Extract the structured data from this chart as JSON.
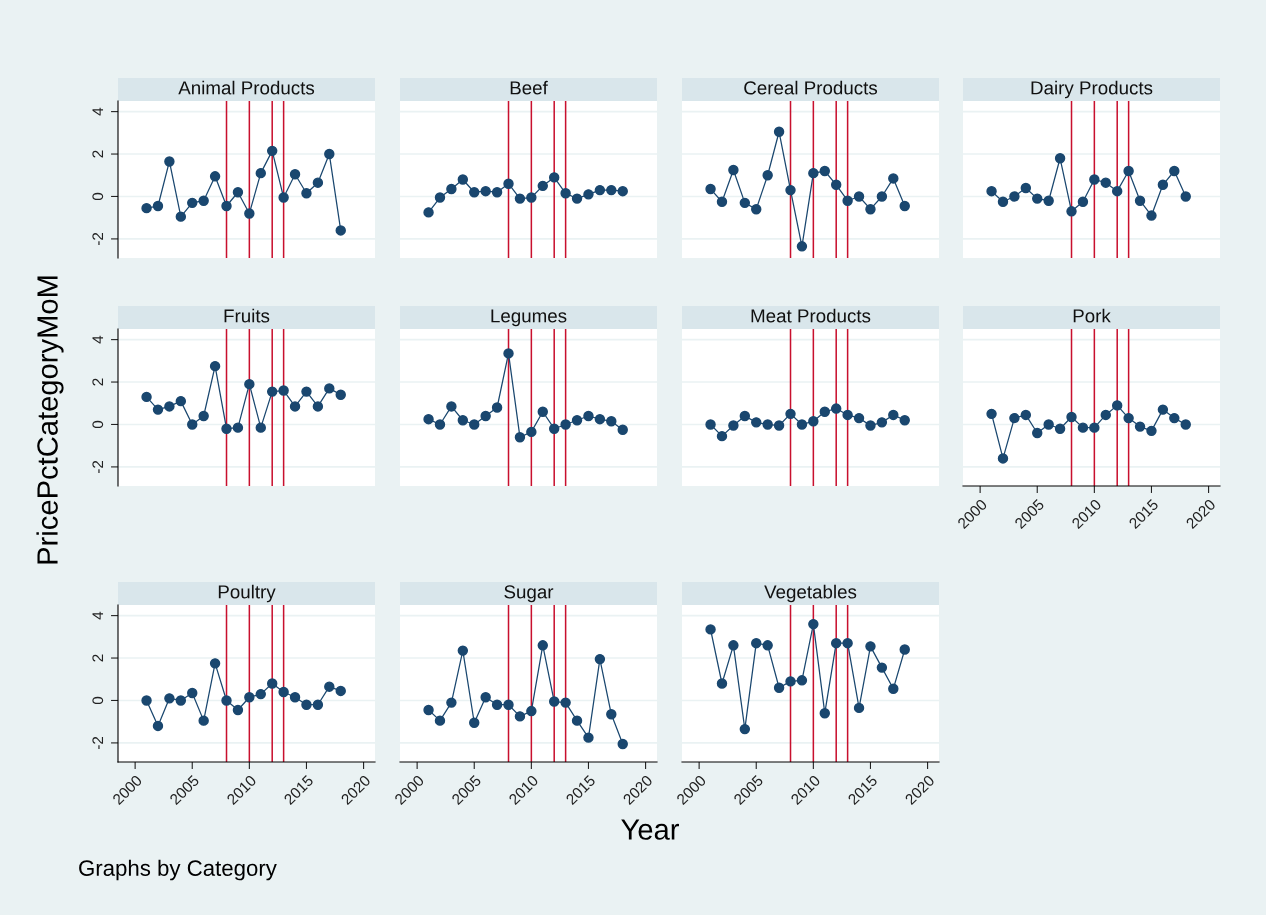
{
  "chart_data": [
    {
      "type": "line",
      "title": "Animal Products",
      "x": [
        2001,
        2002,
        2003,
        2004,
        2005,
        2006,
        2007,
        2008,
        2009,
        2010,
        2011,
        2012,
        2013,
        2014,
        2015,
        2016,
        2017,
        2018
      ],
      "series": [
        {
          "color": "#1a476f",
          "values": [
            -0.55,
            -0.45,
            1.65,
            -0.95,
            -0.3,
            -0.2,
            0.95,
            -0.45,
            0.2,
            -0.8,
            1.1,
            2.15,
            -0.05,
            1.05,
            0.15,
            0.65,
            2.0,
            -1.6
          ]
        }
      ],
      "marker": "circle",
      "xlim": [
        1998.5,
        2021
      ],
      "ylim": [
        -2.9,
        4.5
      ],
      "xticks": [
        2000,
        2005,
        2010,
        2015,
        2020
      ],
      "yticks": [
        -2,
        0,
        2,
        4
      ],
      "tick_labels": "y",
      "grid": "y",
      "ref_lines": [
        {
          "axis": "x",
          "value": 2008,
          "color": "#c8102e"
        },
        {
          "axis": "x",
          "value": 2010,
          "color": "#c8102e"
        },
        {
          "axis": "x",
          "value": 2012,
          "color": "#c8102e"
        },
        {
          "axis": "x",
          "value": 2013,
          "color": "#c8102e"
        }
      ]
    },
    {
      "type": "line",
      "title": "Beef",
      "x": [
        2001,
        2002,
        2003,
        2004,
        2005,
        2006,
        2007,
        2008,
        2009,
        2010,
        2011,
        2012,
        2013,
        2014,
        2015,
        2016,
        2017,
        2018
      ],
      "series": [
        {
          "color": "#1a476f",
          "values": [
            -0.75,
            -0.05,
            0.35,
            0.8,
            0.2,
            0.25,
            0.2,
            0.6,
            -0.1,
            -0.05,
            0.5,
            0.9,
            0.15,
            -0.1,
            0.1,
            0.3,
            0.3,
            0.25
          ]
        }
      ],
      "marker": "circle",
      "xlim": [
        1998.5,
        2021
      ],
      "ylim": [
        -2.9,
        4.5
      ],
      "xticks": [
        2000,
        2005,
        2010,
        2015,
        2020
      ],
      "yticks": [
        -2,
        0,
        2,
        4
      ],
      "tick_labels": false,
      "grid": "y",
      "ref_lines": [
        {
          "axis": "x",
          "value": 2008,
          "color": "#c8102e"
        },
        {
          "axis": "x",
          "value": 2010,
          "color": "#c8102e"
        },
        {
          "axis": "x",
          "value": 2012,
          "color": "#c8102e"
        },
        {
          "axis": "x",
          "value": 2013,
          "color": "#c8102e"
        }
      ]
    },
    {
      "type": "line",
      "title": "Cereal Products",
      "x": [
        2001,
        2002,
        2003,
        2004,
        2005,
        2006,
        2007,
        2008,
        2009,
        2010,
        2011,
        2012,
        2013,
        2014,
        2015,
        2016,
        2017,
        2018
      ],
      "series": [
        {
          "color": "#1a476f",
          "values": [
            0.35,
            -0.25,
            1.25,
            -0.3,
            -0.6,
            1.0,
            3.05,
            0.3,
            -2.35,
            1.1,
            1.2,
            0.55,
            -0.2,
            0.0,
            -0.6,
            0.0,
            0.85,
            -0.45
          ]
        }
      ],
      "marker": "circle",
      "xlim": [
        1998.5,
        2021
      ],
      "ylim": [
        -2.9,
        4.5
      ],
      "xticks": [
        2000,
        2005,
        2010,
        2015,
        2020
      ],
      "yticks": [
        -2,
        0,
        2,
        4
      ],
      "tick_labels": false,
      "grid": "y",
      "ref_lines": [
        {
          "axis": "x",
          "value": 2008,
          "color": "#c8102e"
        },
        {
          "axis": "x",
          "value": 2010,
          "color": "#c8102e"
        },
        {
          "axis": "x",
          "value": 2012,
          "color": "#c8102e"
        },
        {
          "axis": "x",
          "value": 2013,
          "color": "#c8102e"
        }
      ]
    },
    {
      "type": "line",
      "title": "Dairy Products",
      "x": [
        2001,
        2002,
        2003,
        2004,
        2005,
        2006,
        2007,
        2008,
        2009,
        2010,
        2011,
        2012,
        2013,
        2014,
        2015,
        2016,
        2017,
        2018
      ],
      "series": [
        {
          "color": "#1a476f",
          "values": [
            0.25,
            -0.25,
            0.0,
            0.4,
            -0.1,
            -0.2,
            1.8,
            -0.7,
            -0.25,
            0.8,
            0.65,
            0.25,
            1.2,
            -0.2,
            -0.9,
            0.55,
            1.2,
            0.0
          ]
        }
      ],
      "marker": "circle",
      "xlim": [
        1998.5,
        2021
      ],
      "ylim": [
        -2.9,
        4.5
      ],
      "xticks": [
        2000,
        2005,
        2010,
        2015,
        2020
      ],
      "yticks": [
        -2,
        0,
        2,
        4
      ],
      "tick_labels": false,
      "grid": "y",
      "ref_lines": [
        {
          "axis": "x",
          "value": 2008,
          "color": "#c8102e"
        },
        {
          "axis": "x",
          "value": 2010,
          "color": "#c8102e"
        },
        {
          "axis": "x",
          "value": 2012,
          "color": "#c8102e"
        },
        {
          "axis": "x",
          "value": 2013,
          "color": "#c8102e"
        }
      ]
    },
    {
      "type": "line",
      "title": "Fruits",
      "ylabel": "PricePctCategoryMoM",
      "x": [
        2001,
        2002,
        2003,
        2004,
        2005,
        2006,
        2007,
        2008,
        2009,
        2010,
        2011,
        2012,
        2013,
        2014,
        2015,
        2016,
        2017,
        2018
      ],
      "series": [
        {
          "color": "#1a476f",
          "values": [
            1.3,
            0.7,
            0.85,
            1.1,
            0.0,
            0.4,
            2.75,
            -0.2,
            -0.15,
            1.9,
            -0.15,
            1.55,
            1.6,
            0.85,
            1.55,
            0.85,
            1.7,
            1.4
          ]
        }
      ],
      "marker": "circle",
      "xlim": [
        1998.5,
        2021
      ],
      "ylim": [
        -2.9,
        4.5
      ],
      "xticks": [
        2000,
        2005,
        2010,
        2015,
        2020
      ],
      "yticks": [
        -2,
        0,
        2,
        4
      ],
      "tick_labels": "y",
      "grid": "y",
      "ref_lines": [
        {
          "axis": "x",
          "value": 2008,
          "color": "#c8102e"
        },
        {
          "axis": "x",
          "value": 2010,
          "color": "#c8102e"
        },
        {
          "axis": "x",
          "value": 2012,
          "color": "#c8102e"
        },
        {
          "axis": "x",
          "value": 2013,
          "color": "#c8102e"
        }
      ]
    },
    {
      "type": "line",
      "title": "Legumes",
      "x": [
        2001,
        2002,
        2003,
        2004,
        2005,
        2006,
        2007,
        2008,
        2009,
        2010,
        2011,
        2012,
        2013,
        2014,
        2015,
        2016,
        2017,
        2018
      ],
      "series": [
        {
          "color": "#1a476f",
          "values": [
            0.25,
            0.0,
            0.85,
            0.2,
            0.0,
            0.4,
            0.8,
            3.35,
            -0.6,
            -0.35,
            0.6,
            -0.2,
            0.0,
            0.2,
            0.4,
            0.25,
            0.15,
            -0.25
          ]
        }
      ],
      "marker": "circle",
      "xlim": [
        1998.5,
        2021
      ],
      "ylim": [
        -2.9,
        4.5
      ],
      "xticks": [
        2000,
        2005,
        2010,
        2015,
        2020
      ],
      "yticks": [
        -2,
        0,
        2,
        4
      ],
      "tick_labels": false,
      "grid": "y",
      "ref_lines": [
        {
          "axis": "x",
          "value": 2008,
          "color": "#c8102e"
        },
        {
          "axis": "x",
          "value": 2010,
          "color": "#c8102e"
        },
        {
          "axis": "x",
          "value": 2012,
          "color": "#c8102e"
        },
        {
          "axis": "x",
          "value": 2013,
          "color": "#c8102e"
        }
      ]
    },
    {
      "type": "line",
      "title": "Meat Products",
      "x": [
        2001,
        2002,
        2003,
        2004,
        2005,
        2006,
        2007,
        2008,
        2009,
        2010,
        2011,
        2012,
        2013,
        2014,
        2015,
        2016,
        2017,
        2018
      ],
      "series": [
        {
          "color": "#1a476f",
          "values": [
            0.0,
            -0.55,
            -0.05,
            0.4,
            0.1,
            0.0,
            -0.05,
            0.5,
            0.0,
            0.15,
            0.6,
            0.75,
            0.45,
            0.3,
            -0.05,
            0.1,
            0.45,
            0.2
          ]
        }
      ],
      "marker": "circle",
      "xlim": [
        1998.5,
        2021
      ],
      "ylim": [
        -2.9,
        4.5
      ],
      "xticks": [
        2000,
        2005,
        2010,
        2015,
        2020
      ],
      "yticks": [
        -2,
        0,
        2,
        4
      ],
      "tick_labels": false,
      "grid": "y",
      "ref_lines": [
        {
          "axis": "x",
          "value": 2008,
          "color": "#c8102e"
        },
        {
          "axis": "x",
          "value": 2010,
          "color": "#c8102e"
        },
        {
          "axis": "x",
          "value": 2012,
          "color": "#c8102e"
        },
        {
          "axis": "x",
          "value": 2013,
          "color": "#c8102e"
        }
      ]
    },
    {
      "type": "line",
      "title": "Pork",
      "x": [
        2001,
        2002,
        2003,
        2004,
        2005,
        2006,
        2007,
        2008,
        2009,
        2010,
        2011,
        2012,
        2013,
        2014,
        2015,
        2016,
        2017,
        2018
      ],
      "series": [
        {
          "color": "#1a476f",
          "values": [
            0.5,
            -1.6,
            0.3,
            0.45,
            -0.4,
            0.0,
            -0.2,
            0.35,
            -0.15,
            -0.15,
            0.45,
            0.9,
            0.3,
            -0.1,
            -0.3,
            0.7,
            0.3,
            0.0
          ]
        }
      ],
      "marker": "circle",
      "xlim": [
        1998.5,
        2021
      ],
      "ylim": [
        -2.9,
        4.5
      ],
      "xticks": [
        2000,
        2005,
        2010,
        2015,
        2020
      ],
      "yticks": [
        -2,
        0,
        2,
        4
      ],
      "tick_labels": "x",
      "grid": "y",
      "ref_lines": [
        {
          "axis": "x",
          "value": 2008,
          "color": "#c8102e"
        },
        {
          "axis": "x",
          "value": 2010,
          "color": "#c8102e"
        },
        {
          "axis": "x",
          "value": 2012,
          "color": "#c8102e"
        },
        {
          "axis": "x",
          "value": 2013,
          "color": "#c8102e"
        }
      ]
    },
    {
      "type": "line",
      "title": "Poultry",
      "annotations": [
        "Graphs by Category"
      ],
      "x": [
        2001,
        2002,
        2003,
        2004,
        2005,
        2006,
        2007,
        2008,
        2009,
        2010,
        2011,
        2012,
        2013,
        2014,
        2015,
        2016,
        2017,
        2018
      ],
      "series": [
        {
          "color": "#1a476f",
          "values": [
            0.0,
            -1.2,
            0.1,
            0.0,
            0.35,
            -0.95,
            1.75,
            0.0,
            -0.45,
            0.15,
            0.3,
            0.8,
            0.4,
            0.15,
            -0.2,
            -0.2,
            0.65,
            0.45
          ]
        }
      ],
      "marker": "circle",
      "xlim": [
        1998.5,
        2021
      ],
      "ylim": [
        -2.9,
        4.5
      ],
      "xticks": [
        2000,
        2005,
        2010,
        2015,
        2020
      ],
      "yticks": [
        -2,
        0,
        2,
        4
      ],
      "grid": "y",
      "ref_lines": [
        {
          "axis": "x",
          "value": 2008,
          "color": "#c8102e"
        },
        {
          "axis": "x",
          "value": 2010,
          "color": "#c8102e"
        },
        {
          "axis": "x",
          "value": 2012,
          "color": "#c8102e"
        },
        {
          "axis": "x",
          "value": 2013,
          "color": "#c8102e"
        }
      ]
    },
    {
      "type": "line",
      "title": "Sugar",
      "xlabel": "Year",
      "x": [
        2001,
        2002,
        2003,
        2004,
        2005,
        2006,
        2007,
        2008,
        2009,
        2010,
        2011,
        2012,
        2013,
        2014,
        2015,
        2016,
        2017,
        2018
      ],
      "series": [
        {
          "color": "#1a476f",
          "values": [
            -0.45,
            -0.95,
            -0.1,
            2.35,
            -1.05,
            0.15,
            -0.2,
            -0.2,
            -0.75,
            -0.5,
            2.6,
            -0.05,
            -0.1,
            -0.95,
            -1.75,
            1.95,
            -0.65,
            -2.05
          ]
        }
      ],
      "marker": "circle",
      "xlim": [
        1998.5,
        2021
      ],
      "ylim": [
        -2.9,
        4.5
      ],
      "xticks": [
        2000,
        2005,
        2010,
        2015,
        2020
      ],
      "yticks": [
        -2,
        0,
        2,
        4
      ],
      "tick_labels": "x",
      "grid": "y",
      "ref_lines": [
        {
          "axis": "x",
          "value": 2008,
          "color": "#c8102e"
        },
        {
          "axis": "x",
          "value": 2010,
          "color": "#c8102e"
        },
        {
          "axis": "x",
          "value": 2012,
          "color": "#c8102e"
        },
        {
          "axis": "x",
          "value": 2013,
          "color": "#c8102e"
        }
      ]
    },
    {
      "type": "line",
      "title": "Vegetables",
      "x": [
        2001,
        2002,
        2003,
        2004,
        2005,
        2006,
        2007,
        2008,
        2009,
        2010,
        2011,
        2012,
        2013,
        2014,
        2015,
        2016,
        2017,
        2018
      ],
      "series": [
        {
          "color": "#1a476f",
          "values": [
            3.35,
            0.8,
            2.6,
            -1.35,
            2.7,
            2.6,
            0.6,
            0.9,
            0.95,
            3.6,
            -0.6,
            2.7,
            2.7,
            -0.35,
            2.55,
            1.55,
            0.55,
            2.4
          ]
        }
      ],
      "marker": "circle",
      "xlim": [
        1998.5,
        2021
      ],
      "ylim": [
        -2.9,
        4.5
      ],
      "xticks": [
        2000,
        2005,
        2010,
        2015,
        2020
      ],
      "yticks": [
        -2,
        0,
        2,
        4
      ],
      "tick_labels": "x",
      "grid": "y",
      "ref_lines": [
        {
          "axis": "x",
          "value": 2008,
          "color": "#c8102e"
        },
        {
          "axis": "x",
          "value": 2010,
          "color": "#c8102e"
        },
        {
          "axis": "x",
          "value": 2012,
          "color": "#c8102e"
        },
        {
          "axis": "x",
          "value": 2013,
          "color": "#c8102e"
        }
      ]
    }
  ]
}
